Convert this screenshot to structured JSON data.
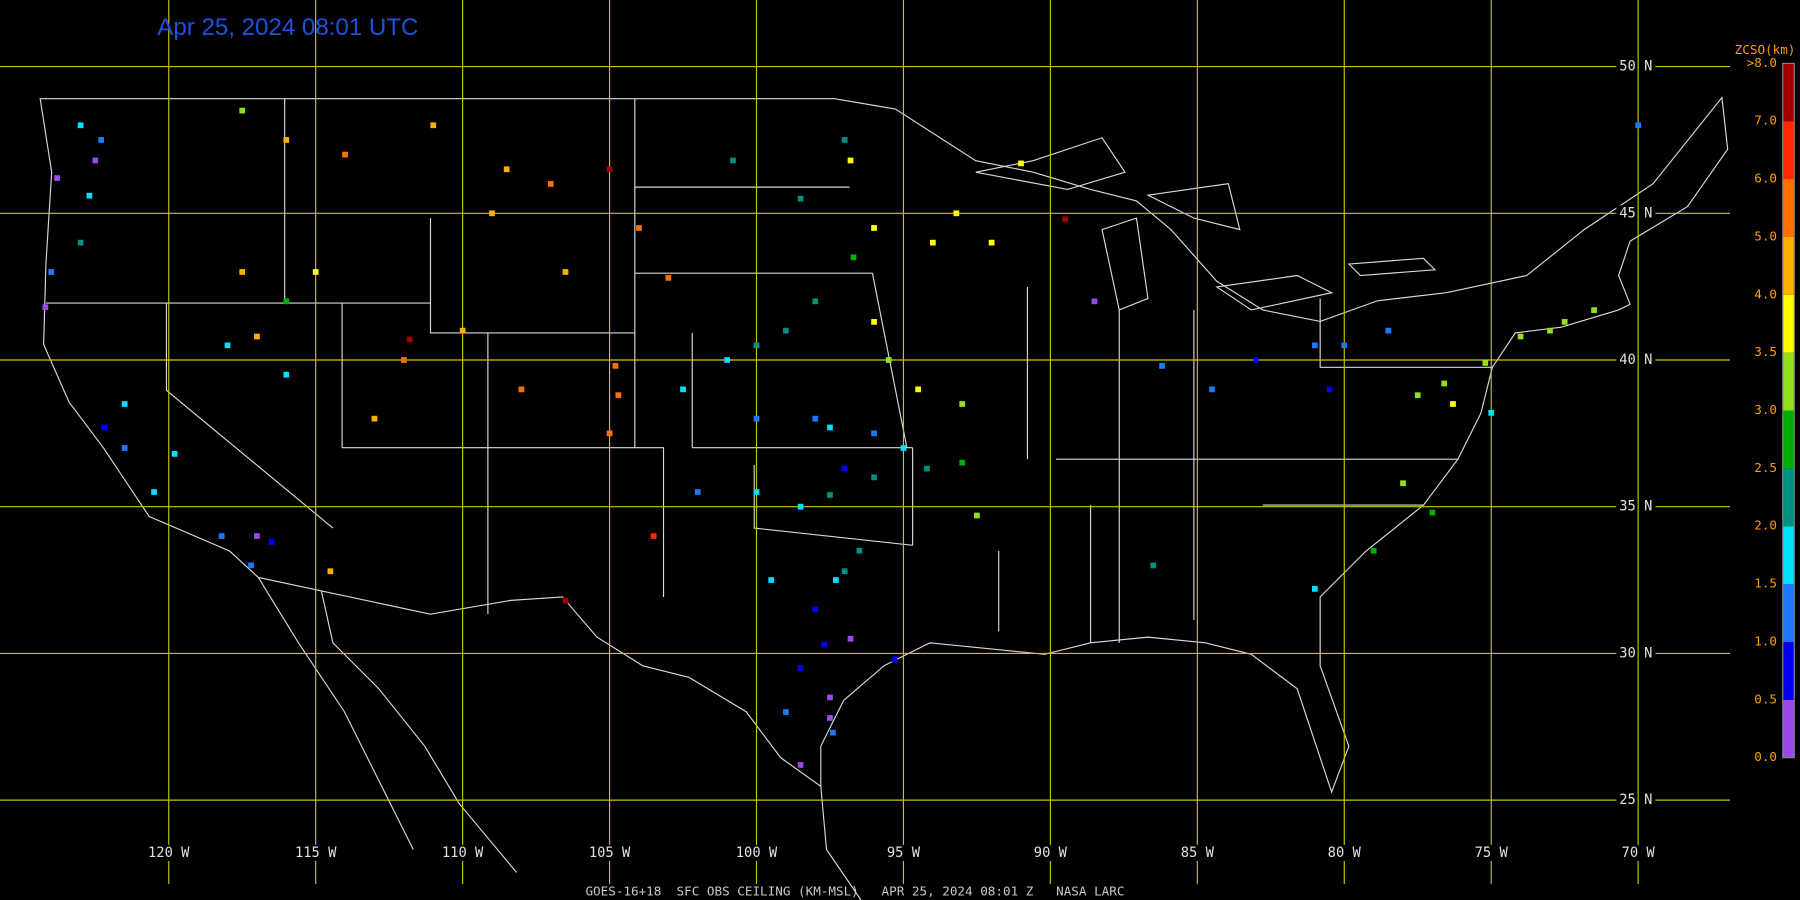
{
  "header": {
    "title": "Apr 25, 2024 08:01 UTC"
  },
  "footer": {
    "text": "GOES-16+18  SFC OBS CEILING (KM-MSL)   APR 25, 2024 08:01 Z   NASA LARC"
  },
  "map": {
    "lat_ticks": [
      {
        "value": 50,
        "label": "50 N"
      },
      {
        "value": 45,
        "label": "45 N"
      },
      {
        "value": 40,
        "label": "40 N"
      },
      {
        "value": 35,
        "label": "35 N"
      },
      {
        "value": 30,
        "label": "30 N"
      },
      {
        "value": 25,
        "label": "25 N"
      }
    ],
    "lon_ticks": [
      {
        "value": -120,
        "label": "120 W"
      },
      {
        "value": -115,
        "label": "115 W"
      },
      {
        "value": -110,
        "label": "110 W"
      },
      {
        "value": -105,
        "label": "105 W"
      },
      {
        "value": -100,
        "label": "100 W"
      },
      {
        "value": -95,
        "label": "95 W"
      },
      {
        "value": -90,
        "label": "90 W"
      },
      {
        "value": -85,
        "label": "85 W"
      },
      {
        "value": -80,
        "label": "80 W"
      },
      {
        "value": -75,
        "label": "75 W"
      },
      {
        "value": -70,
        "label": "70 W"
      }
    ],
    "grid_color": "#c8c800"
  },
  "colorbar": {
    "title": "ZCSO(km)",
    "ticks": [
      {
        "value": 0,
        "label": "0.0"
      },
      {
        "value": 0.5,
        "label": "0.5"
      },
      {
        "value": 1,
        "label": "1.0"
      },
      {
        "value": 1.5,
        "label": "1.5"
      },
      {
        "value": 2,
        "label": "2.0"
      },
      {
        "value": 2.5,
        "label": "2.5"
      },
      {
        "value": 3,
        "label": "3.0"
      },
      {
        "value": 3.5,
        "label": "3.5"
      },
      {
        "value": 4,
        "label": "4.0"
      },
      {
        "value": 5,
        "label": "5.0"
      },
      {
        "value": 6,
        "label": "6.0"
      },
      {
        "value": 7,
        "label": "7.0"
      },
      {
        "value": 8,
        "label": ">8.0"
      }
    ],
    "colors": [
      "#9a48e8",
      "#0000f0",
      "#1e78ff",
      "#00e0ff",
      "#009080",
      "#00b000",
      "#90e020",
      "#ffff00",
      "#ffb000",
      "#ff7000",
      "#ff2800",
      "#a00000"
    ]
  },
  "stations": {
    "lon": [
      -123,
      -122.3,
      -122.5,
      -123.8,
      -122.7,
      -123,
      -124,
      -124.2,
      -117.5,
      -116,
      -114,
      -111,
      -108.5,
      -107,
      -109,
      -105,
      -104,
      -103,
      -106.5,
      -117.5,
      -115,
      -116,
      -118,
      -116,
      -117,
      -111.8,
      -112,
      -110,
      -113,
      -104.8,
      -104.7,
      -105,
      -108,
      -121.5,
      -122.2,
      -121.5,
      -120.5,
      -118.2,
      -117.2,
      -119.8,
      -117,
      -116.5,
      -114.5,
      -106.5,
      -103.5,
      -100.8,
      -98.5,
      -97,
      -96.8,
      -96,
      -94,
      -93.2,
      -92,
      -96.7,
      -98,
      -99,
      -100,
      -96,
      -95.5,
      -94.5,
      -93,
      -101,
      -102.5,
      -100,
      -98,
      -97.5,
      -96,
      -95,
      -97,
      -97.5,
      -96,
      -98.5,
      -100,
      -102,
      -96.5,
      -97,
      -97.3,
      -99.5,
      -98,
      -97.7,
      -96.8,
      -95.3,
      -97.5,
      -98.5,
      -99,
      -97.5,
      -98.5,
      -97.4,
      -92.5,
      -93,
      -94.2,
      -86.2,
      -84.5,
      -83,
      -81,
      -80,
      -78.5,
      -80.5,
      -77.5,
      -76.6,
      -76.3,
      -75.2,
      -74,
      -73,
      -71.5,
      -72.5,
      -75,
      -78,
      -77,
      -79,
      -81,
      -86.5,
      -70,
      -89.5,
      -91,
      -88.5
    ],
    "lat": [
      48,
      47.5,
      46.8,
      46.2,
      45.6,
      44,
      43,
      41.8,
      48.5,
      47.5,
      47,
      48,
      46.5,
      46,
      45,
      46.5,
      44.5,
      42.8,
      43,
      43,
      43,
      42,
      40.5,
      39.5,
      40.8,
      40.7,
      40,
      41,
      38,
      39.8,
      38.8,
      37.5,
      39,
      38.5,
      37.7,
      37,
      35.5,
      34,
      33,
      36.8,
      34,
      33.8,
      32.8,
      31.8,
      34,
      46.8,
      45.5,
      47.5,
      46.8,
      44.5,
      44,
      45,
      44,
      43.5,
      42,
      41,
      40.5,
      41.3,
      40,
      39,
      38.5,
      40,
      39,
      38,
      38,
      37.7,
      37.5,
      37,
      36.3,
      35.4,
      36,
      35,
      35.5,
      35.5,
      33.5,
      32.8,
      32.5,
      32.5,
      31.5,
      30.3,
      30.5,
      29.8,
      28.5,
      29.5,
      28,
      27.8,
      26.2,
      27.3,
      34.7,
      36.5,
      36.3,
      39.8,
      39,
      40,
      40.5,
      40.5,
      41,
      39,
      38.8,
      39.2,
      38.5,
      39.9,
      40.8,
      41,
      41.7,
      41.3,
      38.2,
      35.8,
      34.8,
      33.5,
      32.2,
      33,
      48,
      44.8,
      46.7,
      42
    ],
    "ceiling": [
      1.5,
      1.2,
      0.4,
      0.3,
      1.8,
      2.3,
      1.3,
      0.4,
      3.3,
      4.6,
      5.0,
      4.3,
      4.5,
      5.4,
      4.5,
      7.3,
      5.4,
      5.0,
      4.8,
      4.8,
      3.5,
      2.8,
      1.8,
      1.8,
      4.1,
      7.1,
      5.0,
      4.8,
      4.3,
      5.4,
      5.3,
      5.2,
      5.5,
      1.8,
      0.7,
      1.4,
      1.6,
      1.3,
      1.0,
      1.7,
      0.4,
      0.9,
      4.1,
      7.6,
      6.5,
      2.2,
      2.4,
      2.3,
      3.8,
      3.6,
      3.9,
      3.7,
      3.8,
      2.8,
      2.3,
      2.4,
      2.3,
      3.7,
      3.3,
      3.5,
      3.3,
      1.8,
      1.5,
      1.3,
      1.0,
      1.5,
      1.1,
      1.7,
      0.8,
      2.0,
      2.3,
      1.5,
      1.7,
      1.3,
      2.2,
      2.2,
      1.8,
      1.6,
      0.7,
      0.9,
      0.3,
      0.5,
      0.3,
      0.7,
      1.0,
      0.3,
      0.3,
      1.3,
      3.3,
      2.8,
      2.1,
      1.2,
      1.1,
      0.8,
      1.4,
      1.0,
      1.3,
      0.9,
      3.2,
      3.0,
      3.6,
      3.2,
      3.1,
      3.4,
      3.4,
      3.3,
      1.7,
      3.0,
      2.7,
      2.5,
      1.5,
      2.3,
      1.2,
      7.6,
      3.7,
      0.3
    ]
  }
}
